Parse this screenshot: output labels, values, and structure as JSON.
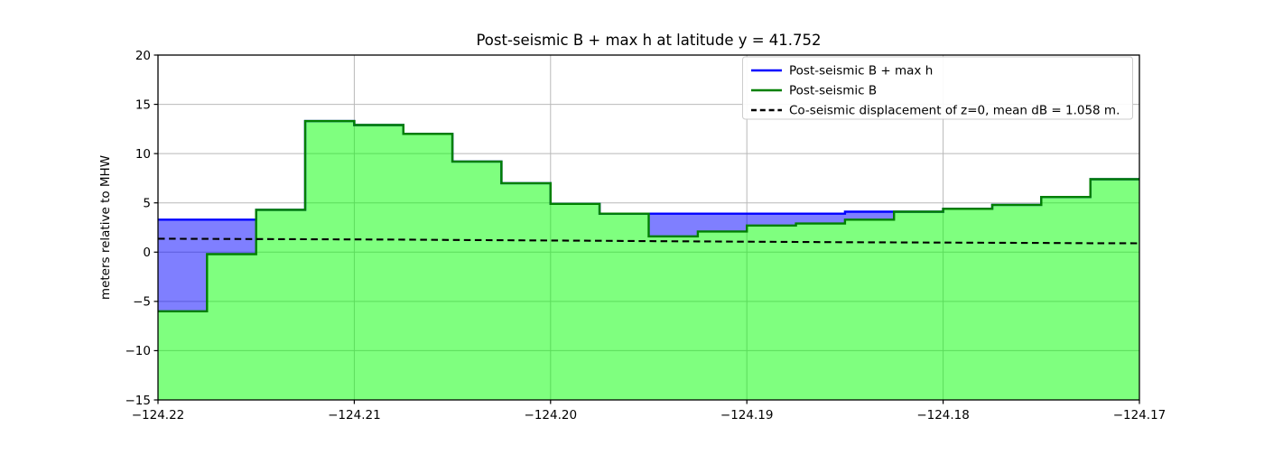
{
  "chart_data": {
    "type": "area",
    "title": "Post-seismic B + max h at latitude y = 41.752",
    "xlabel": "",
    "ylabel": "meters relative to MHW",
    "xlim": [
      -124.22,
      -124.17
    ],
    "ylim": [
      -15,
      20
    ],
    "grid": true,
    "legend_position": "upper right",
    "x_ticks": [
      -124.22,
      -124.21,
      -124.2,
      -124.19,
      -124.18,
      -124.17
    ],
    "x_tick_labels": [
      "−124.22",
      "−124.21",
      "−124.20",
      "−124.19",
      "−124.18",
      "−124.17"
    ],
    "y_ticks": [
      20,
      15,
      10,
      5,
      0,
      -5,
      -10,
      -15
    ],
    "y_tick_labels": [
      "20",
      "15",
      "10",
      "5",
      "0",
      "−5",
      "−10",
      "−15"
    ],
    "step_edges_x": [
      -124.22,
      -124.2175,
      -124.215,
      -124.2125,
      -124.21,
      -124.2075,
      -124.205,
      -124.2025,
      -124.2,
      -124.1975,
      -124.195,
      -124.1925,
      -124.19,
      -124.1875,
      -124.185,
      -124.1825,
      -124.18,
      -124.1775,
      -124.175,
      -124.1725,
      -124.17
    ],
    "series": [
      {
        "name": "Post-seismic B + max h",
        "render": "step",
        "line_color": "#0000ff",
        "fill_color": "#0000ff",
        "fill_opacity": 0.5,
        "values": [
          3.3,
          3.3,
          4.3,
          13.3,
          12.9,
          12.0,
          9.2,
          7.0,
          4.9,
          3.9,
          3.9,
          3.9,
          3.9,
          3.9,
          4.1,
          4.1,
          4.4,
          4.8,
          5.6,
          7.4
        ]
      },
      {
        "name": "Post-seismic B",
        "render": "step",
        "line_color": "#008000",
        "fill_color": "#00ff00",
        "fill_opacity": 0.5,
        "values": [
          -6.0,
          -0.2,
          4.3,
          13.3,
          12.9,
          12.0,
          9.2,
          7.0,
          4.9,
          3.9,
          1.6,
          2.1,
          2.7,
          2.9,
          3.3,
          4.1,
          4.4,
          4.8,
          5.6,
          7.4
        ]
      },
      {
        "name": "Co-seismic displacement of z=0, mean dB = 1.058 m.",
        "render": "dashed-line",
        "line_color": "#000000",
        "x": [
          -124.22,
          -124.2175,
          -124.215,
          -124.2125,
          -124.21,
          -124.2075,
          -124.205,
          -124.2025,
          -124.2,
          -124.1975,
          -124.195,
          -124.1925,
          -124.19,
          -124.1875,
          -124.185,
          -124.1825,
          -124.18,
          -124.1775,
          -124.175,
          -124.1725,
          -124.17
        ],
        "values": [
          1.36,
          1.35,
          1.33,
          1.31,
          1.29,
          1.27,
          1.24,
          1.21,
          1.18,
          1.15,
          1.12,
          1.09,
          1.06,
          1.03,
          1.01,
          0.99,
          0.97,
          0.95,
          0.93,
          0.91,
          0.9
        ]
      }
    ],
    "legend": [
      {
        "label": "Post-seismic B + max h",
        "color": "#0000ff",
        "style": "solid"
      },
      {
        "label": "Post-seismic B",
        "color": "#008000",
        "style": "solid"
      },
      {
        "label": "Co-seismic displacement of z=0, mean dB = 1.058 m.",
        "color": "#000000",
        "style": "dashed"
      }
    ],
    "colors": {
      "grid": "#b9b9b9",
      "spine": "#000000",
      "green_fill_rendered": "#80ff80",
      "blue_fill_rendered": "#8080ff",
      "legend_border": "#cccccc"
    }
  }
}
